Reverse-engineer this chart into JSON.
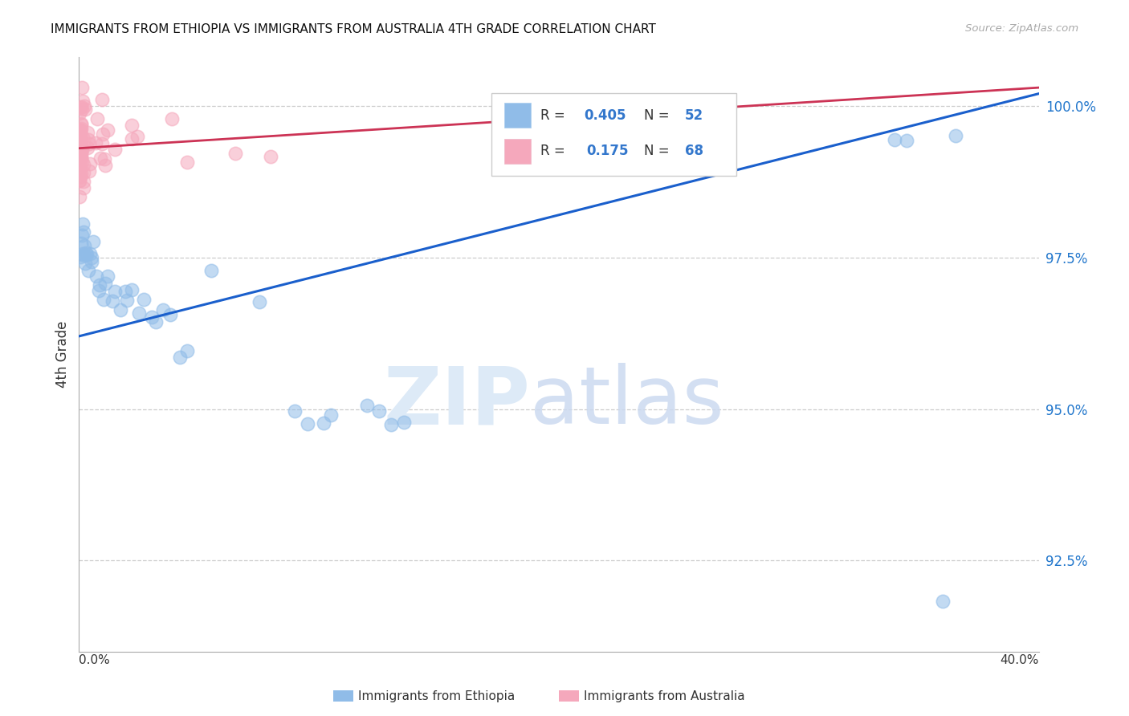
{
  "title": "IMMIGRANTS FROM ETHIOPIA VS IMMIGRANTS FROM AUSTRALIA 4TH GRADE CORRELATION CHART",
  "source": "Source: ZipAtlas.com",
  "ylabel": "4th Grade",
  "yticks": [
    92.5,
    95.0,
    97.5,
    100.0
  ],
  "ytick_labels": [
    "92.5%",
    "95.0%",
    "97.5%",
    "100.0%"
  ],
  "xmin": 0.0,
  "xmax": 40.0,
  "ymin": 91.0,
  "ymax": 100.8,
  "blue_color": "#90bce8",
  "pink_color": "#f5a8bc",
  "trendline_blue": "#1a5fcc",
  "trendline_pink": "#cc3355",
  "r_blue": "0.405",
  "n_blue": "52",
  "r_pink": "0.175",
  "n_pink": "68",
  "label_blue": "Immigrants from Ethiopia",
  "label_pink": "Immigrants from Australia",
  "legend_text_color": "#333333",
  "legend_value_color": "#3377cc",
  "blue_trend_x0": 0.0,
  "blue_trend_y0": 96.2,
  "blue_trend_x1": 40.0,
  "blue_trend_y1": 100.2,
  "pink_trend_x0": 0.0,
  "pink_trend_y0": 99.3,
  "pink_trend_x1": 40.0,
  "pink_trend_y1": 100.3
}
